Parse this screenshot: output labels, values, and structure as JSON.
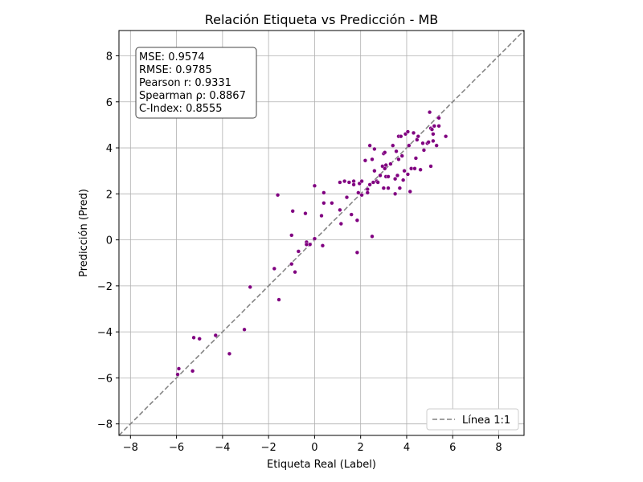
{
  "chart_data": {
    "type": "scatter",
    "title": "Relación Etiqueta vs Predicción - MB",
    "xlabel": "Etiqueta Real (Label)",
    "ylabel": "Predicción (Pred)",
    "xlim": [
      -8.5,
      9.1
    ],
    "ylim": [
      -8.5,
      9.1
    ],
    "x_ticks": [
      -8,
      -6,
      -4,
      -2,
      0,
      2,
      4,
      6,
      8
    ],
    "y_ticks": [
      -8,
      -6,
      -4,
      -2,
      0,
      2,
      4,
      6,
      8
    ],
    "grid": true,
    "point_color": "#800080",
    "reference_line": {
      "label": "Línea 1:1",
      "color": "#808080",
      "style": "dashed",
      "from": [
        -8.5,
        -8.5
      ],
      "to": [
        9.1,
        9.1
      ]
    },
    "legend_position": "bottom-right",
    "stats": [
      "MSE: 0.9574",
      "RMSE: 0.9785",
      "Pearson r: 0.9331",
      "Spearman ρ: 0.8867",
      "C-Index: 0.8555"
    ],
    "points": [
      {
        "x": -5.9,
        "y": -5.6
      },
      {
        "x": -5.95,
        "y": -5.85
      },
      {
        "x": -5.3,
        "y": -5.7
      },
      {
        "x": -5.25,
        "y": -4.25
      },
      {
        "x": -5.0,
        "y": -4.3
      },
      {
        "x": -4.3,
        "y": -4.15
      },
      {
        "x": -3.7,
        "y": -4.95
      },
      {
        "x": -3.05,
        "y": -3.9
      },
      {
        "x": -2.8,
        "y": -2.05
      },
      {
        "x": -1.75,
        "y": -1.25
      },
      {
        "x": -1.55,
        "y": -2.6
      },
      {
        "x": -1.6,
        "y": 1.95
      },
      {
        "x": -1.0,
        "y": 0.2
      },
      {
        "x": -1.0,
        "y": -1.05
      },
      {
        "x": -0.85,
        "y": -1.4
      },
      {
        "x": -0.95,
        "y": 1.25
      },
      {
        "x": -0.7,
        "y": -0.5
      },
      {
        "x": -0.4,
        "y": 1.15
      },
      {
        "x": -0.35,
        "y": -0.1
      },
      {
        "x": -0.35,
        "y": -0.2
      },
      {
        "x": -0.2,
        "y": -0.2
      },
      {
        "x": 0.0,
        "y": 0.05
      },
      {
        "x": 0.0,
        "y": 2.35
      },
      {
        "x": 0.3,
        "y": 1.05
      },
      {
        "x": 0.35,
        "y": -0.25
      },
      {
        "x": 0.4,
        "y": 2.05
      },
      {
        "x": 0.4,
        "y": 1.6
      },
      {
        "x": 0.75,
        "y": 1.6
      },
      {
        "x": 1.1,
        "y": 1.3
      },
      {
        "x": 1.1,
        "y": 2.5
      },
      {
        "x": 1.15,
        "y": 0.7
      },
      {
        "x": 1.3,
        "y": 2.55
      },
      {
        "x": 1.4,
        "y": 1.85
      },
      {
        "x": 1.5,
        "y": 2.5
      },
      {
        "x": 1.6,
        "y": 1.1
      },
      {
        "x": 1.7,
        "y": 2.55
      },
      {
        "x": 1.7,
        "y": 2.4
      },
      {
        "x": 1.85,
        "y": 0.85
      },
      {
        "x": 1.85,
        "y": -0.55
      },
      {
        "x": 1.9,
        "y": 2.05
      },
      {
        "x": 1.95,
        "y": 2.45
      },
      {
        "x": 2.05,
        "y": 2.55
      },
      {
        "x": 2.05,
        "y": 1.95
      },
      {
        "x": 2.2,
        "y": 3.45
      },
      {
        "x": 2.3,
        "y": 2.2
      },
      {
        "x": 2.3,
        "y": 2.05
      },
      {
        "x": 2.4,
        "y": 4.1
      },
      {
        "x": 2.4,
        "y": 2.4
      },
      {
        "x": 2.5,
        "y": 0.15
      },
      {
        "x": 2.5,
        "y": 3.5
      },
      {
        "x": 2.55,
        "y": 2.5
      },
      {
        "x": 2.6,
        "y": 3.95
      },
      {
        "x": 2.6,
        "y": 3.0
      },
      {
        "x": 2.7,
        "y": 2.55
      },
      {
        "x": 2.75,
        "y": 2.5
      },
      {
        "x": 2.85,
        "y": 2.8
      },
      {
        "x": 2.95,
        "y": 3.2
      },
      {
        "x": 3.0,
        "y": 2.25
      },
      {
        "x": 3.0,
        "y": 3.75
      },
      {
        "x": 3.05,
        "y": 3.8
      },
      {
        "x": 3.05,
        "y": 3.1
      },
      {
        "x": 3.1,
        "y": 3.25
      },
      {
        "x": 3.1,
        "y": 2.75
      },
      {
        "x": 3.2,
        "y": 2.25
      },
      {
        "x": 3.2,
        "y": 2.75
      },
      {
        "x": 3.3,
        "y": 3.3
      },
      {
        "x": 3.4,
        "y": 4.1
      },
      {
        "x": 3.5,
        "y": 2.0
      },
      {
        "x": 3.5,
        "y": 2.65
      },
      {
        "x": 3.55,
        "y": 3.85
      },
      {
        "x": 3.6,
        "y": 2.8
      },
      {
        "x": 3.65,
        "y": 4.5
      },
      {
        "x": 3.65,
        "y": 3.5
      },
      {
        "x": 3.7,
        "y": 2.25
      },
      {
        "x": 3.75,
        "y": 4.5
      },
      {
        "x": 3.8,
        "y": 3.65
      },
      {
        "x": 3.85,
        "y": 2.6
      },
      {
        "x": 3.9,
        "y": 3.0
      },
      {
        "x": 3.95,
        "y": 4.6
      },
      {
        "x": 4.05,
        "y": 4.7
      },
      {
        "x": 4.05,
        "y": 2.85
      },
      {
        "x": 4.1,
        "y": 4.1
      },
      {
        "x": 4.15,
        "y": 2.1
      },
      {
        "x": 4.2,
        "y": 3.1
      },
      {
        "x": 4.3,
        "y": 4.65
      },
      {
        "x": 4.35,
        "y": 3.1
      },
      {
        "x": 4.4,
        "y": 3.55
      },
      {
        "x": 4.45,
        "y": 4.35
      },
      {
        "x": 4.5,
        "y": 4.5
      },
      {
        "x": 4.6,
        "y": 3.05
      },
      {
        "x": 4.7,
        "y": 4.2
      },
      {
        "x": 4.75,
        "y": 3.9
      },
      {
        "x": 4.9,
        "y": 4.2
      },
      {
        "x": 4.95,
        "y": 4.25
      },
      {
        "x": 5.0,
        "y": 5.55
      },
      {
        "x": 5.05,
        "y": 3.2
      },
      {
        "x": 5.05,
        "y": 4.85
      },
      {
        "x": 5.1,
        "y": 4.8
      },
      {
        "x": 5.15,
        "y": 4.3
      },
      {
        "x": 5.15,
        "y": 4.6
      },
      {
        "x": 5.2,
        "y": 4.95
      },
      {
        "x": 5.3,
        "y": 4.1
      },
      {
        "x": 5.4,
        "y": 5.3
      },
      {
        "x": 5.4,
        "y": 4.95
      },
      {
        "x": 5.7,
        "y": 4.5
      }
    ]
  }
}
